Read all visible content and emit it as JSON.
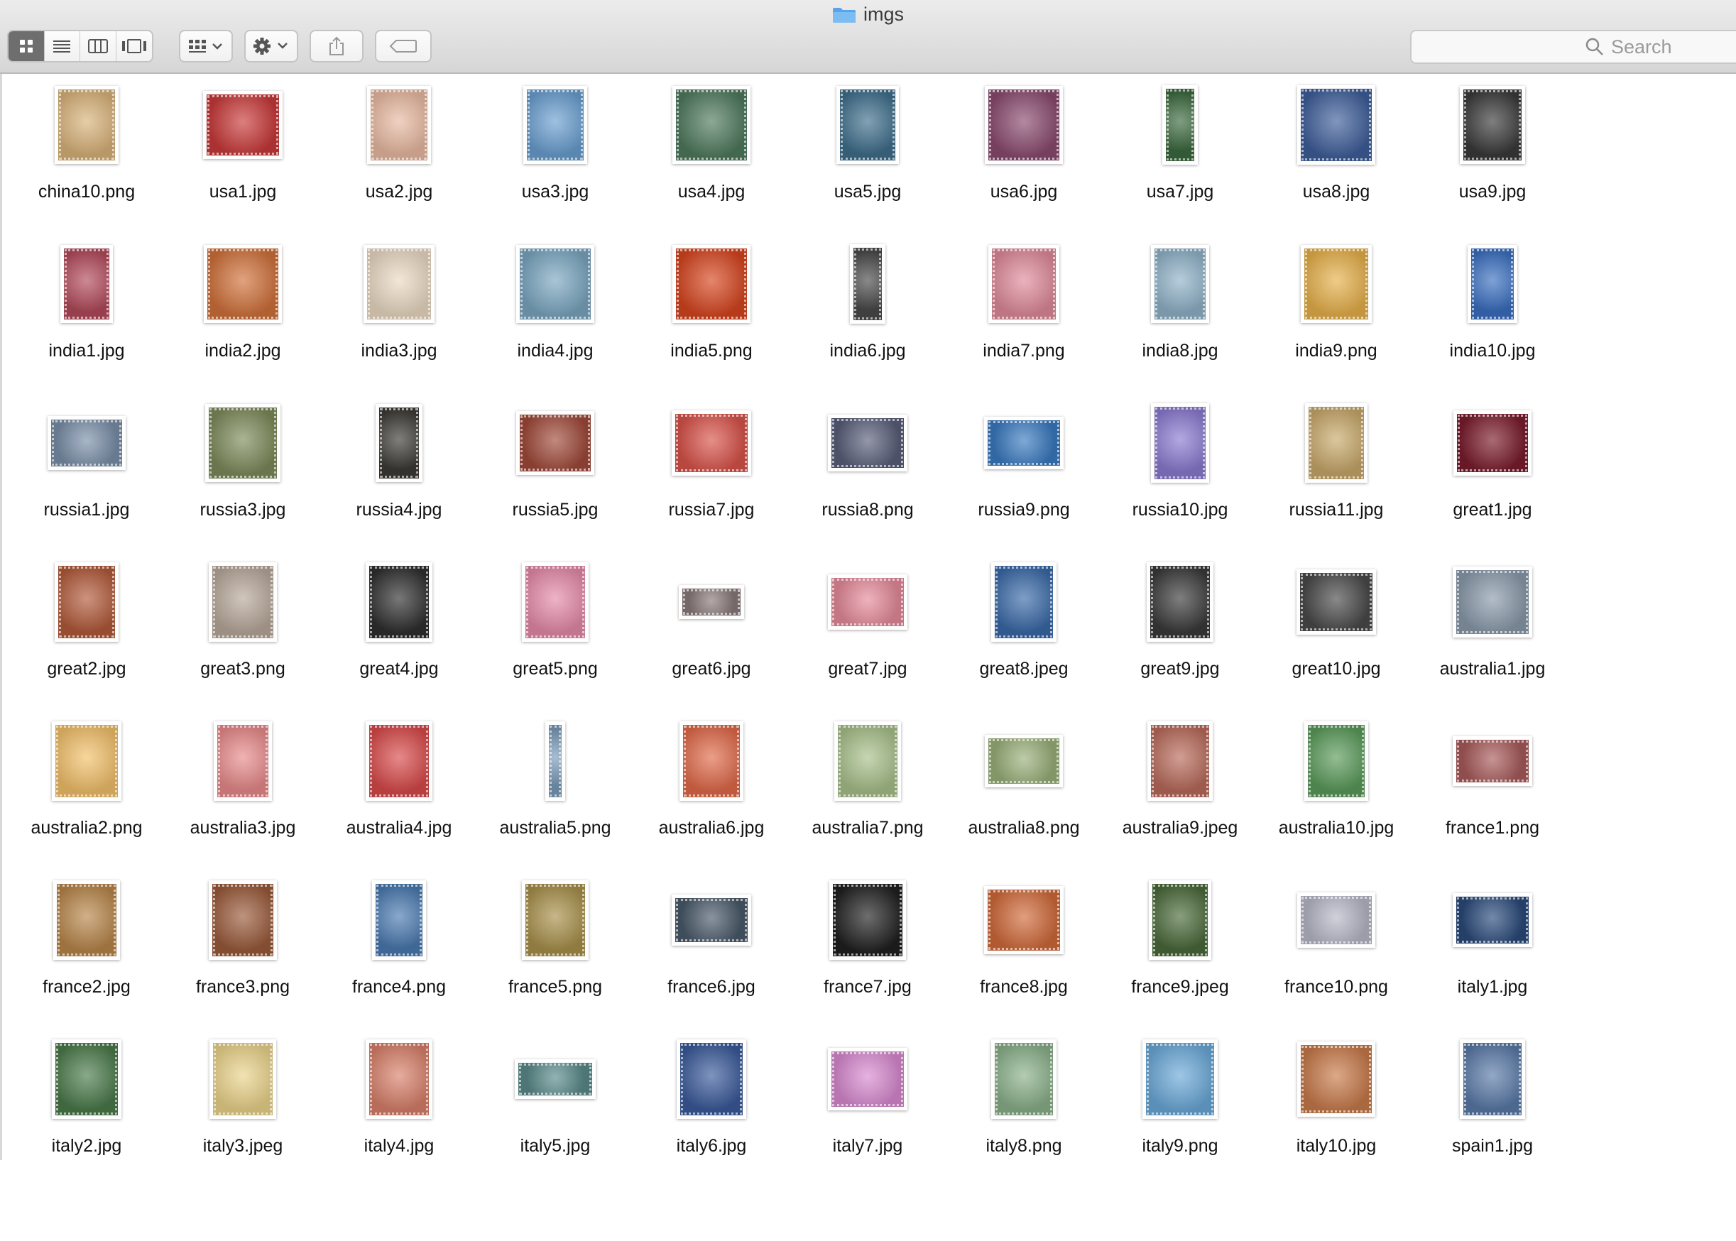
{
  "window": {
    "title": "imgs",
    "folder_icon": "folder-icon"
  },
  "toolbar": {
    "view_buttons": [
      "icon-view-icon",
      "list-view-icon",
      "column-view-icon",
      "gallery-view-icon"
    ],
    "active_view": 0,
    "arrange_icon": "arrange-grid-icon",
    "action_icon": "gear-icon",
    "share_icon": "share-icon",
    "tag_icon": "tag-icon"
  },
  "search": {
    "placeholder": "Search",
    "icon": "search-icon"
  },
  "files": [
    {
      "name": "china10.png",
      "color": "#d9b37a"
    },
    {
      "name": "usa1.jpg",
      "color": "#c93a3a"
    },
    {
      "name": "usa2.jpg",
      "color": "#e8b9a1"
    },
    {
      "name": "usa3.jpg",
      "color": "#6a9fd0"
    },
    {
      "name": "usa4.jpg",
      "color": "#4f7a5e"
    },
    {
      "name": "usa5.jpg",
      "color": "#3f6f8c"
    },
    {
      "name": "usa6.jpg",
      "color": "#8a4a6e"
    },
    {
      "name": "usa7.jpg",
      "color": "#3c6a3f"
    },
    {
      "name": "usa8.jpg",
      "color": "#3e5e9a"
    },
    {
      "name": "usa9.jpg",
      "color": "#3a3a3a"
    },
    {
      "name": "india1.jpg",
      "color": "#b24a5a"
    },
    {
      "name": "india2.jpg",
      "color": "#d0713a"
    },
    {
      "name": "india3.jpg",
      "color": "#ead9c3"
    },
    {
      "name": "india4.jpg",
      "color": "#7aa6c0"
    },
    {
      "name": "india5.png",
      "color": "#d6451f"
    },
    {
      "name": "india6.jpg",
      "color": "#4a4a4a"
    },
    {
      "name": "india7.png",
      "color": "#df8a9a"
    },
    {
      "name": "india8.jpg",
      "color": "#8fb2c8"
    },
    {
      "name": "india9.png",
      "color": "#e6b04a"
    },
    {
      "name": "india10.jpg",
      "color": "#3a6fc0"
    },
    {
      "name": "russia1.jpg",
      "color": "#7a8fa8"
    },
    {
      "name": "russia3.jpg",
      "color": "#7d8a5a"
    },
    {
      "name": "russia4.jpg",
      "color": "#3d3a35"
    },
    {
      "name": "russia5.jpg",
      "color": "#a04a3a"
    },
    {
      "name": "russia7.jpg",
      "color": "#d8534a"
    },
    {
      "name": "russia8.png",
      "color": "#5a5f7a"
    },
    {
      "name": "russia9.png",
      "color": "#3a7ac0"
    },
    {
      "name": "russia10.jpg",
      "color": "#8a7ad0"
    },
    {
      "name": "russia11.jpg",
      "color": "#c8a86a"
    },
    {
      "name": "great1.jpg",
      "color": "#7a1c2c"
    },
    {
      "name": "great2.jpg",
      "color": "#b25a3a"
    },
    {
      "name": "great3.png",
      "color": "#b8a89a"
    },
    {
      "name": "great4.jpg",
      "color": "#2f2f2f"
    },
    {
      "name": "great5.png",
      "color": "#e58aa8"
    },
    {
      "name": "great6.jpg",
      "color": "#8a7a7a"
    },
    {
      "name": "great7.jpg",
      "color": "#e58a9a"
    },
    {
      "name": "great8.jpeg",
      "color": "#3a6aa8"
    },
    {
      "name": "great9.jpg",
      "color": "#3a3a3a"
    },
    {
      "name": "great10.jpg",
      "color": "#4a4a4a"
    },
    {
      "name": "australia1.jpg",
      "color": "#8a9aaa"
    },
    {
      "name": "australia2.png",
      "color": "#f2c06a"
    },
    {
      "name": "australia3.jpg",
      "color": "#e88a8a"
    },
    {
      "name": "australia4.jpg",
      "color": "#d84a4a"
    },
    {
      "name": "australia5.png",
      "color": "#7a9ab8"
    },
    {
      "name": "australia6.jpg",
      "color": "#e06a4a"
    },
    {
      "name": "australia7.png",
      "color": "#a8c08a"
    },
    {
      "name": "australia8.png",
      "color": "#9ab07a"
    },
    {
      "name": "australia9.jpeg",
      "color": "#b86a5a"
    },
    {
      "name": "australia10.jpg",
      "color": "#5a9a5a"
    },
    {
      "name": "france1.png",
      "color": "#a85a5a"
    },
    {
      "name": "france2.jpg",
      "color": "#b8864a"
    },
    {
      "name": "france3.png",
      "color": "#9a5a3a"
    },
    {
      "name": "france4.png",
      "color": "#4a7ab0"
    },
    {
      "name": "france5.png",
      "color": "#a8904a"
    },
    {
      "name": "france6.jpg",
      "color": "#4a5a6a"
    },
    {
      "name": "france7.jpg",
      "color": "#202020"
    },
    {
      "name": "france8.jpg",
      "color": "#d06a3a"
    },
    {
      "name": "france9.jpeg",
      "color": "#4a6a3a"
    },
    {
      "name": "france10.png",
      "color": "#b8b8c8"
    },
    {
      "name": "italy1.jpg",
      "color": "#2a4a7a"
    },
    {
      "name": "italy2.jpg",
      "color": "#4a7a4a"
    },
    {
      "name": "italy3.jpeg",
      "color": "#ead38a"
    },
    {
      "name": "italy4.jpg",
      "color": "#d8806a"
    },
    {
      "name": "italy5.jpg",
      "color": "#5a8a8a"
    },
    {
      "name": "italy6.jpg",
      "color": "#3a5a9a"
    },
    {
      "name": "italy7.jpg",
      "color": "#d88ad0"
    },
    {
      "name": "italy8.png",
      "color": "#8ab08a"
    },
    {
      "name": "italy9.png",
      "color": "#6aa8d8"
    },
    {
      "name": "italy10.jpg",
      "color": "#c87a4a"
    },
    {
      "name": "spain1.jpg",
      "color": "#5a7aa8"
    }
  ]
}
